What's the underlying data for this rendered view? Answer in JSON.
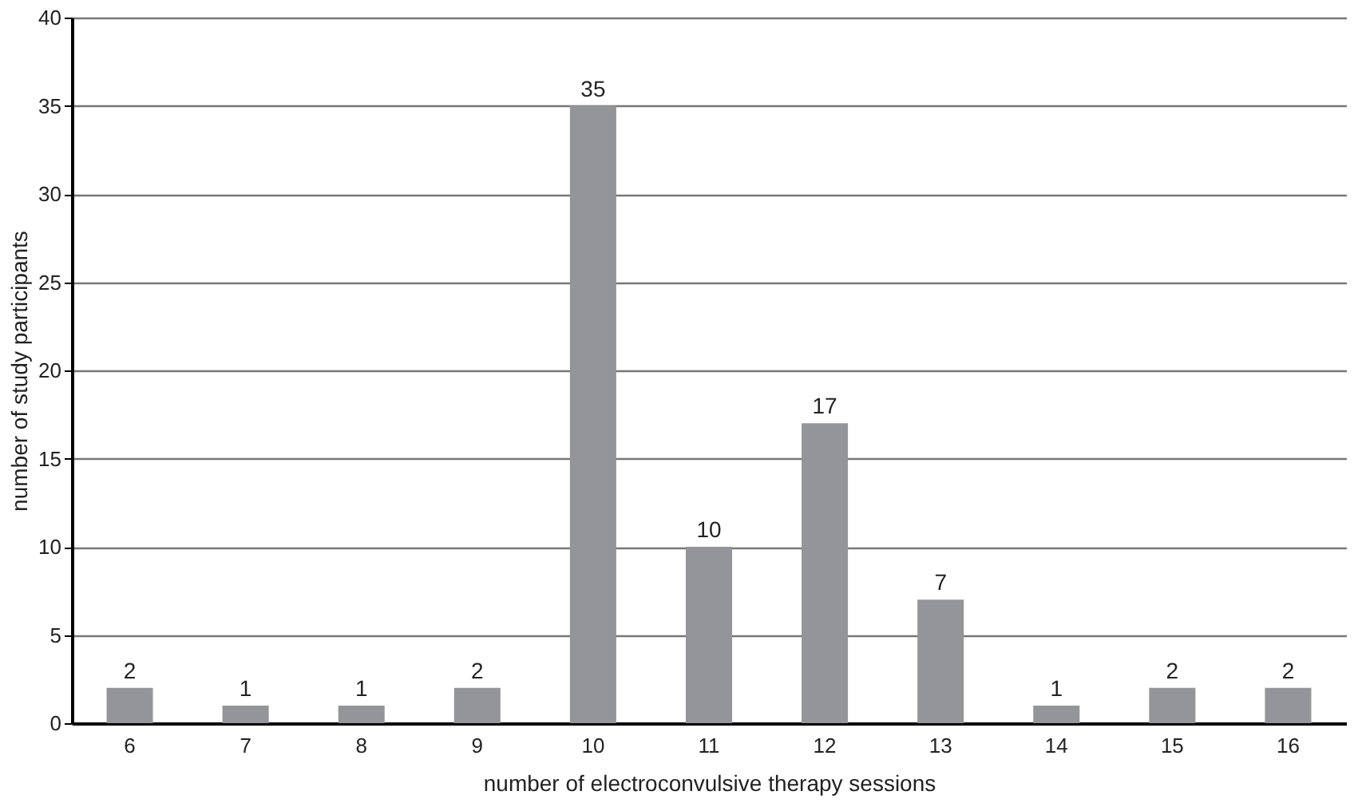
{
  "chart_data": {
    "type": "bar",
    "xlabel": "number of electroconvulsive therapy sessions",
    "ylabel": "number of study participants",
    "categories": [
      "6",
      "7",
      "8",
      "9",
      "10",
      "11",
      "12",
      "13",
      "14",
      "15",
      "16"
    ],
    "values": [
      2,
      1,
      1,
      2,
      35,
      10,
      17,
      7,
      1,
      2,
      2
    ],
    "color": "#939598",
    "ylim": [
      0,
      40
    ],
    "yticks": [
      0,
      5,
      10,
      15,
      20,
      25,
      30,
      35,
      40
    ],
    "grid": "y",
    "data_labels": true
  }
}
